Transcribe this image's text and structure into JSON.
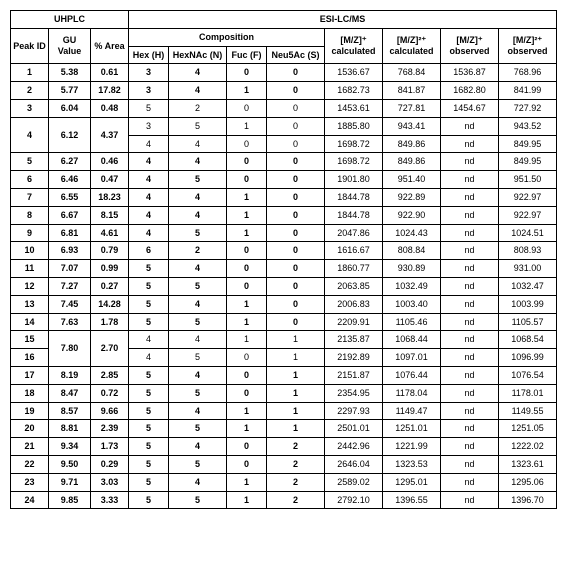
{
  "headers": {
    "uhplc": "UHPLC",
    "esi": "ESI-LC/MS",
    "peakId": "Peak ID",
    "gu": "GU Value",
    "area": "% Area",
    "composition": "Composition",
    "hex": "Hex (H)",
    "hexnac": "HexNAc (N)",
    "fuc": "Fuc (F)",
    "neu5ac": "Neu5Ac (S)",
    "mz1calc": "[M/Z]⁺ calculated",
    "mz2calc": "[M/Z]²⁺ calculated",
    "mz1obs": "[M/Z]⁺ observed",
    "mz2obs": "[M/Z]²⁺ observed"
  },
  "rows": [
    {
      "type": "single",
      "peak": "1",
      "gu": "5.38",
      "area": "0.61",
      "bold": true,
      "hex": "3",
      "hnac": "4",
      "fuc": "0",
      "neu": "0",
      "c1": "1536.67",
      "c2": "768.84",
      "o1": "1536.87",
      "o2": "768.96"
    },
    {
      "type": "single",
      "peak": "2",
      "gu": "5.77",
      "area": "17.82",
      "bold": true,
      "hex": "3",
      "hnac": "4",
      "fuc": "1",
      "neu": "0",
      "c1": "1682.73",
      "c2": "841.87",
      "o1": "1682.80",
      "o2": "841.99"
    },
    {
      "type": "single",
      "peak": "3",
      "gu": "6.04",
      "area": "0.48",
      "bold": false,
      "hex": "5",
      "hnac": "2",
      "fuc": "0",
      "neu": "0",
      "c1": "1453.61",
      "c2": "727.81",
      "o1": "1454.67",
      "o2": "727.92"
    },
    {
      "type": "pair",
      "peak": "4",
      "gu": "6.12",
      "area": "4.37",
      "sub": [
        {
          "bold": false,
          "hex": "3",
          "hnac": "5",
          "fuc": "1",
          "neu": "0",
          "c1": "1885.80",
          "c2": "943.41",
          "o1": "nd",
          "o2": "943.52"
        },
        {
          "bold": false,
          "hex": "4",
          "hnac": "4",
          "fuc": "0",
          "neu": "0",
          "c1": "1698.72",
          "c2": "849.86",
          "o1": "nd",
          "o2": "849.95"
        }
      ]
    },
    {
      "type": "single",
      "peak": "5",
      "gu": "6.27",
      "area": "0.46",
      "bold": true,
      "hex": "4",
      "hnac": "4",
      "fuc": "0",
      "neu": "0",
      "c1": "1698.72",
      "c2": "849.86",
      "o1": "nd",
      "o2": "849.95"
    },
    {
      "type": "single",
      "peak": "6",
      "gu": "6.46",
      "area": "0.47",
      "bold": true,
      "hex": "4",
      "hnac": "5",
      "fuc": "0",
      "neu": "0",
      "c1": "1901.80",
      "c2": "951.40",
      "o1": "nd",
      "o2": "951.50"
    },
    {
      "type": "single",
      "peak": "7",
      "gu": "6.55",
      "area": "18.23",
      "bold": true,
      "hex": "4",
      "hnac": "4",
      "fuc": "1",
      "neu": "0",
      "c1": "1844.78",
      "c2": "922.89",
      "o1": "nd",
      "o2": "922.97"
    },
    {
      "type": "single",
      "peak": "8",
      "gu": "6.67",
      "area": "8.15",
      "bold": true,
      "hex": "4",
      "hnac": "4",
      "fuc": "1",
      "neu": "0",
      "c1": "1844.78",
      "c2": "922.90",
      "o1": "nd",
      "o2": "922.97"
    },
    {
      "type": "single",
      "peak": "9",
      "gu": "6.81",
      "area": "4.61",
      "bold": true,
      "hex": "4",
      "hnac": "5",
      "fuc": "1",
      "neu": "0",
      "c1": "2047.86",
      "c2": "1024.43",
      "o1": "nd",
      "o2": "1024.51"
    },
    {
      "type": "single",
      "peak": "10",
      "gu": "6.93",
      "area": "0.79",
      "bold": true,
      "hex": "6",
      "hnac": "2",
      "fuc": "0",
      "neu": "0",
      "c1": "1616.67",
      "c2": "808.84",
      "o1": "nd",
      "o2": "808.93"
    },
    {
      "type": "single",
      "peak": "11",
      "gu": "7.07",
      "area": "0.99",
      "bold": true,
      "hex": "5",
      "hnac": "4",
      "fuc": "0",
      "neu": "0",
      "c1": "1860.77",
      "c2": "930.89",
      "o1": "nd",
      "o2": "931.00"
    },
    {
      "type": "single",
      "peak": "12",
      "gu": "7.27",
      "area": "0.27",
      "bold": true,
      "hex": "5",
      "hnac": "5",
      "fuc": "0",
      "neu": "0",
      "c1": "2063.85",
      "c2": "1032.49",
      "o1": "nd",
      "o2": "1032.47"
    },
    {
      "type": "single",
      "peak": "13",
      "gu": "7.45",
      "area": "14.28",
      "bold": true,
      "hex": "5",
      "hnac": "4",
      "fuc": "1",
      "neu": "0",
      "c1": "2006.83",
      "c2": "1003.40",
      "o1": "nd",
      "o2": "1003.99"
    },
    {
      "type": "single",
      "peak": "14",
      "gu": "7.63",
      "area": "1.78",
      "bold": true,
      "hex": "5",
      "hnac": "5",
      "fuc": "1",
      "neu": "0",
      "c1": "2209.91",
      "c2": "1105.46",
      "o1": "nd",
      "o2": "1105.57"
    },
    {
      "type": "pair",
      "peak1": "15",
      "peak2": "16",
      "gu": "7.80",
      "area": "2.70",
      "sub": [
        {
          "bold": false,
          "hex": "4",
          "hnac": "4",
          "fuc": "1",
          "neu": "1",
          "c1": "2135.87",
          "c2": "1068.44",
          "o1": "nd",
          "o2": "1068.54"
        },
        {
          "bold": false,
          "hex": "4",
          "hnac": "5",
          "fuc": "0",
          "neu": "1",
          "c1": "2192.89",
          "c2": "1097.01",
          "o1": "nd",
          "o2": "1096.99"
        }
      ]
    },
    {
      "type": "single",
      "peak": "17",
      "gu": "8.19",
      "area": "2.85",
      "bold": true,
      "hex": "5",
      "hnac": "4",
      "fuc": "0",
      "neu": "1",
      "c1": "2151.87",
      "c2": "1076.44",
      "o1": "nd",
      "o2": "1076.54"
    },
    {
      "type": "single",
      "peak": "18",
      "gu": "8.47",
      "area": "0.72",
      "bold": true,
      "hex": "5",
      "hnac": "5",
      "fuc": "0",
      "neu": "1",
      "c1": "2354.95",
      "c2": "1178.04",
      "o1": "nd",
      "o2": "1178.01"
    },
    {
      "type": "single",
      "peak": "19",
      "gu": "8.57",
      "area": "9.66",
      "bold": true,
      "hex": "5",
      "hnac": "4",
      "fuc": "1",
      "neu": "1",
      "c1": "2297.93",
      "c2": "1149.47",
      "o1": "nd",
      "o2": "1149.55"
    },
    {
      "type": "single",
      "peak": "20",
      "gu": "8.81",
      "area": "2.39",
      "bold": true,
      "hex": "5",
      "hnac": "5",
      "fuc": "1",
      "neu": "1",
      "c1": "2501.01",
      "c2": "1251.01",
      "o1": "nd",
      "o2": "1251.05"
    },
    {
      "type": "single",
      "peak": "21",
      "gu": "9.34",
      "area": "1.73",
      "bold": true,
      "hex": "5",
      "hnac": "4",
      "fuc": "0",
      "neu": "2",
      "c1": "2442.96",
      "c2": "1221.99",
      "o1": "nd",
      "o2": "1222.02"
    },
    {
      "type": "single",
      "peak": "22",
      "gu": "9.50",
      "area": "0.29",
      "bold": true,
      "hex": "5",
      "hnac": "5",
      "fuc": "0",
      "neu": "2",
      "c1": "2646.04",
      "c2": "1323.53",
      "o1": "nd",
      "o2": "1323.61"
    },
    {
      "type": "single",
      "peak": "23",
      "gu": "9.71",
      "area": "3.03",
      "bold": true,
      "hex": "5",
      "hnac": "4",
      "fuc": "1",
      "neu": "2",
      "c1": "2589.02",
      "c2": "1295.01",
      "o1": "nd",
      "o2": "1295.06"
    },
    {
      "type": "single",
      "peak": "24",
      "gu": "9.85",
      "area": "3.33",
      "bold": true,
      "hex": "5",
      "hnac": "5",
      "fuc": "1",
      "neu": "2",
      "c1": "2792.10",
      "c2": "1396.55",
      "o1": "nd",
      "o2": "1396.70"
    }
  ]
}
